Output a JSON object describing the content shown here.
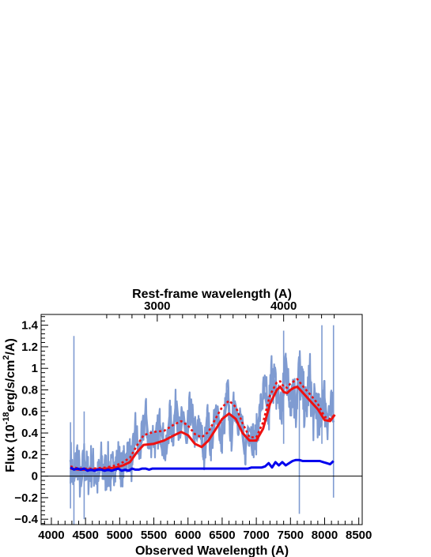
{
  "chart_data": {
    "type": "line",
    "title": "",
    "xlabel": "Observed Wavelength (A)",
    "ylabel_parts": {
      "pre": "Flux (10",
      "exp1": "-18",
      "mid": "erg/s/cm",
      "exp2": "2",
      "post": "/A)"
    },
    "top_axis_label": "Rest-frame wavelength (A)",
    "xlim": [
      3850,
      8550
    ],
    "ylim": [
      -0.45,
      1.5
    ],
    "xticks": [
      "4000",
      "4500",
      "5000",
      "5500",
      "6000",
      "6500",
      "7000",
      "7500",
      "8000",
      "8500"
    ],
    "yticks": [
      "1.4",
      "1.2",
      "1",
      "0.8",
      "0.6",
      "0.4",
      "0.2",
      "0",
      "−0.2",
      "−0.4"
    ],
    "top_ticks": [
      "3000",
      "4000"
    ],
    "top_tick_obs_positions": [
      5550,
      7400
    ],
    "zero_line": 0,
    "colors": {
      "observed": "#7f9bd1",
      "model": "#ee1111",
      "model_upper": "#ee1111",
      "error": "#0000ee"
    },
    "series": [
      {
        "key": "observed",
        "style": "noisy-fill",
        "x": [
          4280,
          4330,
          4380,
          4430,
          4480,
          4530,
          4580,
          4630,
          4680,
          4730,
          4780,
          4830,
          4880,
          4930,
          4980,
          5030,
          5080,
          5130,
          5180,
          5230,
          5280,
          5330,
          5380,
          5430,
          5480,
          5530,
          5580,
          5630,
          5680,
          5730,
          5780,
          5830,
          5880,
          5930,
          5980,
          6030,
          6080,
          6130,
          6180,
          6230,
          6280,
          6330,
          6380,
          6430,
          6480,
          6530,
          6580,
          6630,
          6680,
          6730,
          6780,
          6830,
          6880,
          6930,
          6980,
          7030,
          7080,
          7130,
          7180,
          7230,
          7280,
          7330,
          7380,
          7430,
          7480,
          7530,
          7580,
          7630,
          7680,
          7730,
          7780,
          7830,
          7880,
          7930,
          7980,
          8030,
          8080,
          8130
        ],
        "y": [
          0.15,
          -0.05,
          0.2,
          -0.1,
          0.15,
          0.0,
          0.1,
          0.05,
          -0.05,
          0.12,
          0.02,
          0.1,
          0.0,
          0.12,
          0.18,
          0.05,
          0.15,
          0.25,
          0.1,
          0.45,
          0.2,
          0.35,
          0.6,
          0.25,
          0.4,
          0.3,
          0.5,
          0.35,
          0.2,
          0.55,
          0.4,
          0.7,
          0.35,
          0.6,
          0.3,
          0.65,
          0.45,
          0.35,
          0.5,
          0.15,
          0.55,
          0.3,
          0.45,
          0.65,
          0.3,
          0.5,
          0.8,
          0.35,
          0.7,
          0.55,
          0.5,
          0.2,
          0.45,
          0.4,
          0.3,
          0.5,
          0.7,
          0.75,
          0.55,
          1.0,
          0.8,
          0.7,
          0.6,
          1.1,
          0.7,
          0.85,
          0.65,
          1.0,
          0.75,
          0.6,
          0.95,
          0.55,
          0.7,
          0.45,
          0.8,
          0.55,
          0.6,
          0.5
        ]
      },
      {
        "key": "model",
        "style": "solid",
        "x": [
          4280,
          4400,
          4600,
          4800,
          4950,
          5050,
          5150,
          5250,
          5350,
          5500,
          5650,
          5800,
          5900,
          6000,
          6100,
          6200,
          6300,
          6400,
          6500,
          6600,
          6700,
          6800,
          6900,
          7000,
          7100,
          7200,
          7300,
          7350,
          7400,
          7450,
          7500,
          7550,
          7600,
          7700,
          7800,
          7900,
          8000,
          8080,
          8150
        ],
        "y": [
          0.07,
          0.06,
          0.06,
          0.07,
          0.08,
          0.1,
          0.13,
          0.22,
          0.29,
          0.3,
          0.33,
          0.38,
          0.41,
          0.38,
          0.3,
          0.27,
          0.33,
          0.43,
          0.53,
          0.58,
          0.53,
          0.4,
          0.33,
          0.33,
          0.44,
          0.67,
          0.8,
          0.83,
          0.78,
          0.77,
          0.8,
          0.82,
          0.83,
          0.76,
          0.69,
          0.62,
          0.52,
          0.51,
          0.57
        ]
      },
      {
        "key": "model_upper",
        "style": "dotted",
        "x": [
          4280,
          4400,
          4600,
          4800,
          4950,
          5050,
          5150,
          5250,
          5350,
          5500,
          5650,
          5800,
          5900,
          6000,
          6100,
          6200,
          6300,
          6400,
          6500,
          6600,
          6700,
          6800,
          6900,
          7000,
          7100,
          7200,
          7300,
          7350,
          7400,
          7450,
          7500,
          7550,
          7600,
          7700,
          7800,
          7900,
          8000,
          8080,
          8150
        ],
        "y": [
          0.09,
          0.07,
          0.07,
          0.08,
          0.1,
          0.13,
          0.17,
          0.28,
          0.38,
          0.41,
          0.42,
          0.48,
          0.51,
          0.47,
          0.39,
          0.36,
          0.41,
          0.53,
          0.64,
          0.7,
          0.64,
          0.49,
          0.36,
          0.36,
          0.5,
          0.75,
          0.87,
          0.88,
          0.83,
          0.82,
          0.86,
          0.88,
          0.9,
          0.82,
          0.75,
          0.67,
          0.55,
          0.53,
          0.57
        ]
      },
      {
        "key": "error",
        "style": "solid",
        "x": [
          4280,
          4330,
          4380,
          4430,
          4480,
          4530,
          4580,
          4630,
          4680,
          4730,
          4780,
          4830,
          4880,
          4930,
          4980,
          5030,
          5080,
          5130,
          5180,
          5230,
          5280,
          5330,
          5380,
          5430,
          5480,
          5530,
          5580,
          5630,
          5680,
          5730,
          5780,
          5830,
          5880,
          5930,
          5980,
          6030,
          6080,
          6130,
          6180,
          6230,
          6280,
          6330,
          6380,
          6430,
          6480,
          6530,
          6580,
          6630,
          6680,
          6730,
          6780,
          6830,
          6880,
          6930,
          6980,
          7030,
          7080,
          7130,
          7180,
          7230,
          7280,
          7330,
          7380,
          7430,
          7480,
          7530,
          7580,
          7630,
          7680,
          7730,
          7780,
          7830,
          7880,
          7930,
          7980,
          8030,
          8080,
          8130
        ],
        "y": [
          0.08,
          0.06,
          0.07,
          0.06,
          0.07,
          0.05,
          0.06,
          0.05,
          0.06,
          0.06,
          0.05,
          0.06,
          0.05,
          0.06,
          0.07,
          0.05,
          0.06,
          0.05,
          0.07,
          0.06,
          0.06,
          0.07,
          0.07,
          0.06,
          0.07,
          0.07,
          0.07,
          0.07,
          0.07,
          0.07,
          0.07,
          0.07,
          0.07,
          0.07,
          0.07,
          0.07,
          0.07,
          0.07,
          0.07,
          0.07,
          0.07,
          0.07,
          0.07,
          0.07,
          0.07,
          0.07,
          0.07,
          0.07,
          0.07,
          0.07,
          0.07,
          0.07,
          0.07,
          0.08,
          0.08,
          0.08,
          0.08,
          0.09,
          0.12,
          0.08,
          0.13,
          0.1,
          0.13,
          0.1,
          0.12,
          0.14,
          0.15,
          0.15,
          0.14,
          0.14,
          0.14,
          0.14,
          0.14,
          0.14,
          0.13,
          0.12,
          0.11,
          0.14
        ]
      }
    ]
  }
}
